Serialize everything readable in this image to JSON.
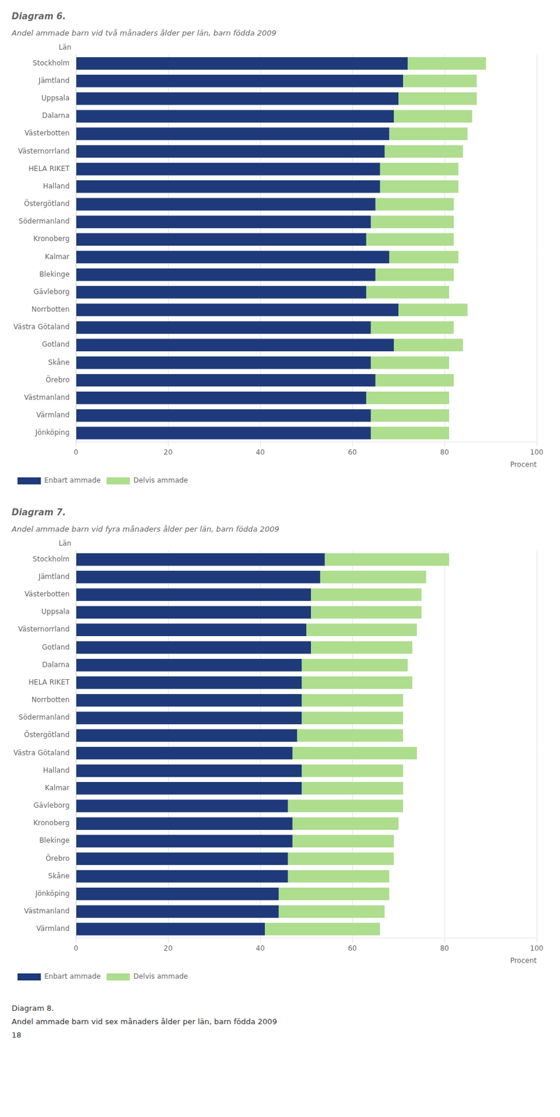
{
  "chart_data": [
    {
      "type": "bar",
      "title": "Diagram 6.",
      "subtitle": "Andel ammade barn vid två månaders ålder per län, barn födda 2009",
      "orientation": "horizontal",
      "stacked": true,
      "categories": [
        "Stockholm",
        "Jämtland",
        "Uppsala",
        "Dalarna",
        "Västerbotten",
        "Västernorrland",
        "HELA RIKET",
        "Halland",
        "Östergötland",
        "Södermanland",
        "Kronoberg",
        "Kalmar",
        "Blekinge",
        "Gävleborg",
        "Norrbotten",
        "Västra Götaland",
        "Gotland",
        "Skåne",
        "Örebro",
        "Västmanland",
        "Värmland",
        "Jönköping"
      ],
      "series": [
        {
          "name": "Enbart ammade",
          "color": "#1F3A7A",
          "values": [
            72,
            71,
            70,
            69,
            68,
            67,
            66,
            66,
            65,
            64,
            63,
            68,
            65,
            63,
            70,
            64,
            69,
            64,
            65,
            63,
            64,
            64
          ]
        },
        {
          "name": "Delvis ammade",
          "color": "#AEDD8E",
          "values": [
            17,
            16,
            17,
            17,
            17,
            17,
            17,
            17,
            17,
            18,
            19,
            15,
            17,
            18,
            15,
            18,
            15,
            17,
            17,
            18,
            17,
            17
          ]
        }
      ],
      "xlabel": "Procent",
      "ylabel": "Län",
      "xlim": [
        0,
        100
      ],
      "xticks": [
        0,
        20,
        40,
        60,
        80,
        100
      ],
      "grid": "x",
      "legend": "bottom"
    },
    {
      "type": "bar",
      "title": "Diagram 7.",
      "subtitle": "Andel ammade barn vid fyra månaders ålder per län, barn födda 2009",
      "orientation": "horizontal",
      "stacked": true,
      "categories": [
        "Stockholm",
        "Jämtland",
        "Västerbotten",
        "Uppsala",
        "Västernorrland",
        "Gotland",
        "Dalarna",
        "HELA RIKET",
        "Norrbotten",
        "Södermanland",
        "Östergötland",
        "Västra Götaland",
        "Halland",
        "Kalmar",
        "Gävleborg",
        "Kronoberg",
        "Blekinge",
        "Örebro",
        "Skåne",
        "Jönköping",
        "Västmanland",
        "Värmland"
      ],
      "series": [
        {
          "name": "Enbart ammade",
          "color": "#1F3A7A",
          "values": [
            54,
            53,
            51,
            51,
            50,
            51,
            49,
            49,
            49,
            49,
            48,
            47,
            49,
            49,
            46,
            47,
            47,
            46,
            46,
            44,
            44,
            41
          ]
        },
        {
          "name": "Delvis ammade",
          "color": "#AEDD8E",
          "values": [
            27,
            23,
            24,
            24,
            24,
            22,
            23,
            24,
            22,
            22,
            23,
            27,
            22,
            22,
            25,
            23,
            22,
            23,
            22,
            24,
            23,
            25
          ]
        }
      ],
      "xlabel": "Procent",
      "ylabel": "Län",
      "xlim": [
        0,
        100
      ],
      "xticks": [
        0,
        20,
        40,
        60,
        80,
        100
      ],
      "grid": "x",
      "legend": "bottom",
      "annotations": [
        "Diagram 8.",
        "Andel ammade barn vid sex månaders ålder per län, barn födda 2009",
        "18"
      ]
    }
  ]
}
